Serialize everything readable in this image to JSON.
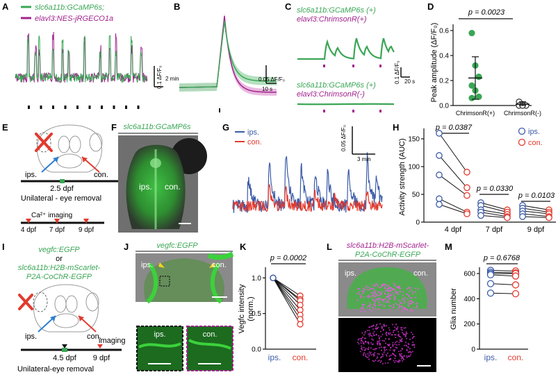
{
  "colors": {
    "green": "#3aa655",
    "magenta": "#a2238e",
    "blue": "#3b5ba8",
    "red": "#e23a2e",
    "black": "#111111"
  },
  "panels": {
    "A": {
      "letter": "A",
      "legend": [
        "slc6a11b:GCaMP6s;",
        "elavl3:NES-jRGECO1a"
      ],
      "scale_y": "0.1 ΔF/F₀",
      "scale_x": "2 min"
    },
    "B": {
      "letter": "B",
      "scale_y": "0.05 ΔF/F₀",
      "scale_x": "10 s"
    },
    "C": {
      "letter": "C",
      "top_label_1": "slc6a11b:GCaMP6s (+)",
      "top_label_2": "elavl3:ChrimsonR(+)",
      "bottom_label_1": "slc6a11b:GCaMP6s (+)",
      "bottom_label_2": "elavl3:ChrimsonR(-)",
      "scale_y": "0.1 ΔF/F₀",
      "scale_x": "20 s"
    },
    "D": {
      "letter": "D",
      "pvalue": "p = 0.0023",
      "ylabel": "Peak amplitude (ΔF/F₀)",
      "yticks": [
        "0.0",
        "0.2",
        "0.4",
        "0.6"
      ],
      "xticks": [
        "ChrimsonR(+)",
        "ChrimsonR(-)"
      ]
    },
    "E": {
      "letter": "E",
      "ips": "ips.",
      "con": "con.",
      "age": "2.5 dpf",
      "caption": "Unilateral - eye removal",
      "ca_label": "Ca²⁺ imaging",
      "days": [
        "4 dpf",
        "7 dpf",
        "9 dpf"
      ]
    },
    "F": {
      "letter": "F",
      "title": "slc6a11b:GCaMP6s",
      "ips": "ips.",
      "con": "con."
    },
    "G": {
      "letter": "G",
      "legend": [
        "ips.",
        "con."
      ],
      "scale_y": "0.05 ΔF/F₀",
      "scale_x": "3 min"
    },
    "H": {
      "letter": "H",
      "ylabel": "Activity strength (AUC)",
      "yticks": [
        "0",
        "50",
        "100",
        "150"
      ],
      "xticks": [
        "4 dpf",
        "7 dpf",
        "9 dpf"
      ],
      "pvalues": [
        "p = 0.0387",
        "p = 0.0330",
        "p = 0.0103"
      ],
      "legend": [
        "ips.",
        "con."
      ]
    },
    "I": {
      "letter": "I",
      "line1": "vegfc:EGFP",
      "line2": "or",
      "line3": "slc6a11b:H2B-mScarlet-",
      "line4": "P2A-CoChR-EGFP",
      "ips": "ips.",
      "con": "con.",
      "imaging": "imaging",
      "age1": "4.5 dpf",
      "age2": "9 dpf",
      "caption": "Unilateral-eye removal"
    },
    "J": {
      "letter": "J",
      "title": "vegfc:EGFP",
      "ips": "ips.",
      "con": "con.",
      "inset_ips": "ips.",
      "inset_con": "con."
    },
    "K": {
      "letter": "K",
      "pvalue": "p = 0.0002",
      "ylabel": "Vegfc intensity",
      "ylabel2": "(norm.)",
      "yticks": [
        "0.0",
        "0.5",
        "1.0"
      ],
      "xticks": [
        "ips.",
        "con."
      ]
    },
    "L": {
      "letter": "L",
      "title1": "slc6a11b:H2B-mScarlet-",
      "title2": "P2A-CoChR-EGFP",
      "ips": "ips.",
      "con": "con."
    },
    "M": {
      "letter": "M",
      "pvalue": "p = 0.6768",
      "ylabel": "Glia number",
      "yticks": [
        "0",
        "200",
        "400",
        "600"
      ],
      "xticks": [
        "ips.",
        "con."
      ]
    }
  },
  "chart_data": [
    {
      "panel": "D",
      "type": "scatter",
      "ylim": [
        0,
        0.65
      ],
      "series": [
        {
          "category": "ChrimsonR(+)",
          "values": [
            0.58,
            0.32,
            0.23,
            0.16,
            0.12,
            0.07,
            0.06
          ],
          "mean": 0.22,
          "error": 0.17
        },
        {
          "category": "ChrimsonR(-)",
          "values": [
            0.03,
            0.01,
            0.0,
            0.0,
            0.0
          ],
          "mean": 0.01,
          "error": 0.02
        }
      ]
    },
    {
      "panel": "H",
      "type": "scatter",
      "ylim": [
        0,
        160
      ],
      "groups": [
        {
          "category": "4 dpf",
          "pairs": [
            [
              160,
              90
            ],
            [
              120,
              62
            ],
            [
              85,
              48
            ],
            [
              42,
              18
            ],
            [
              32,
              15
            ]
          ]
        },
        {
          "category": "7 dpf",
          "pairs": [
            [
              35,
              22
            ],
            [
              30,
              18
            ],
            [
              22,
              14
            ],
            [
              18,
              10
            ],
            [
              12,
              8
            ]
          ]
        },
        {
          "category": "9 dpf",
          "pairs": [
            [
              30,
              22
            ],
            [
              25,
              18
            ],
            [
              20,
              15
            ],
            [
              15,
              10
            ],
            [
              10,
              8
            ]
          ]
        }
      ]
    },
    {
      "panel": "K",
      "type": "scatter",
      "ylim": [
        0,
        1.15
      ],
      "pairs": [
        [
          1.0,
          0.75
        ],
        [
          1.0,
          0.7
        ],
        [
          1.0,
          0.68
        ],
        [
          1.0,
          0.62
        ],
        [
          1.0,
          0.55
        ],
        [
          1.0,
          0.48
        ],
        [
          1.0,
          0.42
        ],
        [
          1.0,
          0.35
        ]
      ]
    },
    {
      "panel": "M",
      "type": "scatter",
      "ylim": [
        0,
        650
      ],
      "pairs": [
        [
          625,
          620
        ],
        [
          610,
          605
        ],
        [
          600,
          600
        ],
        [
          590,
          580
        ],
        [
          520,
          510
        ],
        [
          445,
          440
        ]
      ]
    }
  ]
}
